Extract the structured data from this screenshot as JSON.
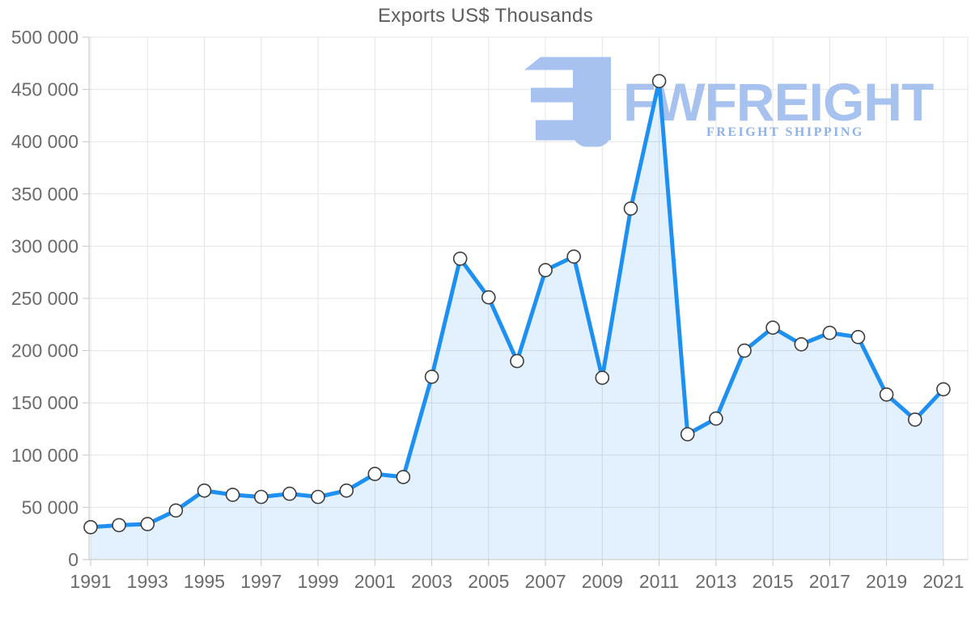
{
  "title": "Exports US$ Thousands",
  "watermark": {
    "brand": "FWFREIGHT",
    "tagline": "FREIGHT SHIPPING"
  },
  "colors": {
    "line": "#1e90f2",
    "area_fill": "rgba(33,150,243,0.13)",
    "grid": "#e4e4e4",
    "axis": "#c6c6c6",
    "tick_text": "#6b6b6b",
    "title_text": "#5d5d5d",
    "marker_fill": "#ffffff",
    "marker_stroke": "#3d3d3d",
    "watermark_blue": "#a7c2ef",
    "watermark_tagline": "#8fb1ea"
  },
  "chart_data": {
    "type": "area",
    "title": "Exports US$ Thousands",
    "xlabel": "",
    "ylabel": "",
    "x": [
      1991,
      1992,
      1993,
      1994,
      1995,
      1996,
      1997,
      1998,
      1999,
      2000,
      2001,
      2002,
      2003,
      2004,
      2005,
      2006,
      2007,
      2008,
      2009,
      2010,
      2011,
      2012,
      2013,
      2014,
      2015,
      2016,
      2017,
      2018,
      2019,
      2020,
      2021
    ],
    "values": [
      31000,
      33000,
      34000,
      47000,
      66000,
      62000,
      60000,
      63000,
      60000,
      66000,
      82000,
      79000,
      175000,
      288000,
      251000,
      190000,
      277000,
      290000,
      174000,
      336000,
      458000,
      120000,
      135000,
      200000,
      222000,
      206000,
      217000,
      213000,
      158000,
      134000,
      163000
    ],
    "ylim": [
      0,
      500000
    ],
    "y_ticks": [
      0,
      50000,
      100000,
      150000,
      200000,
      250000,
      300000,
      350000,
      400000,
      450000,
      500000
    ],
    "y_tick_labels": [
      "0",
      "50 000",
      "100 000",
      "150 000",
      "200 000",
      "250 000",
      "300 000",
      "350 000",
      "400 000",
      "450 000",
      "500 000"
    ],
    "x_tick_labels": [
      "1991",
      "1993",
      "1995",
      "1997",
      "1999",
      "2001",
      "2003",
      "2005",
      "2007",
      "2009",
      "2011",
      "2013",
      "2015",
      "2017",
      "2019",
      "2021"
    ],
    "grid": true,
    "legend": false,
    "markers": true
  }
}
